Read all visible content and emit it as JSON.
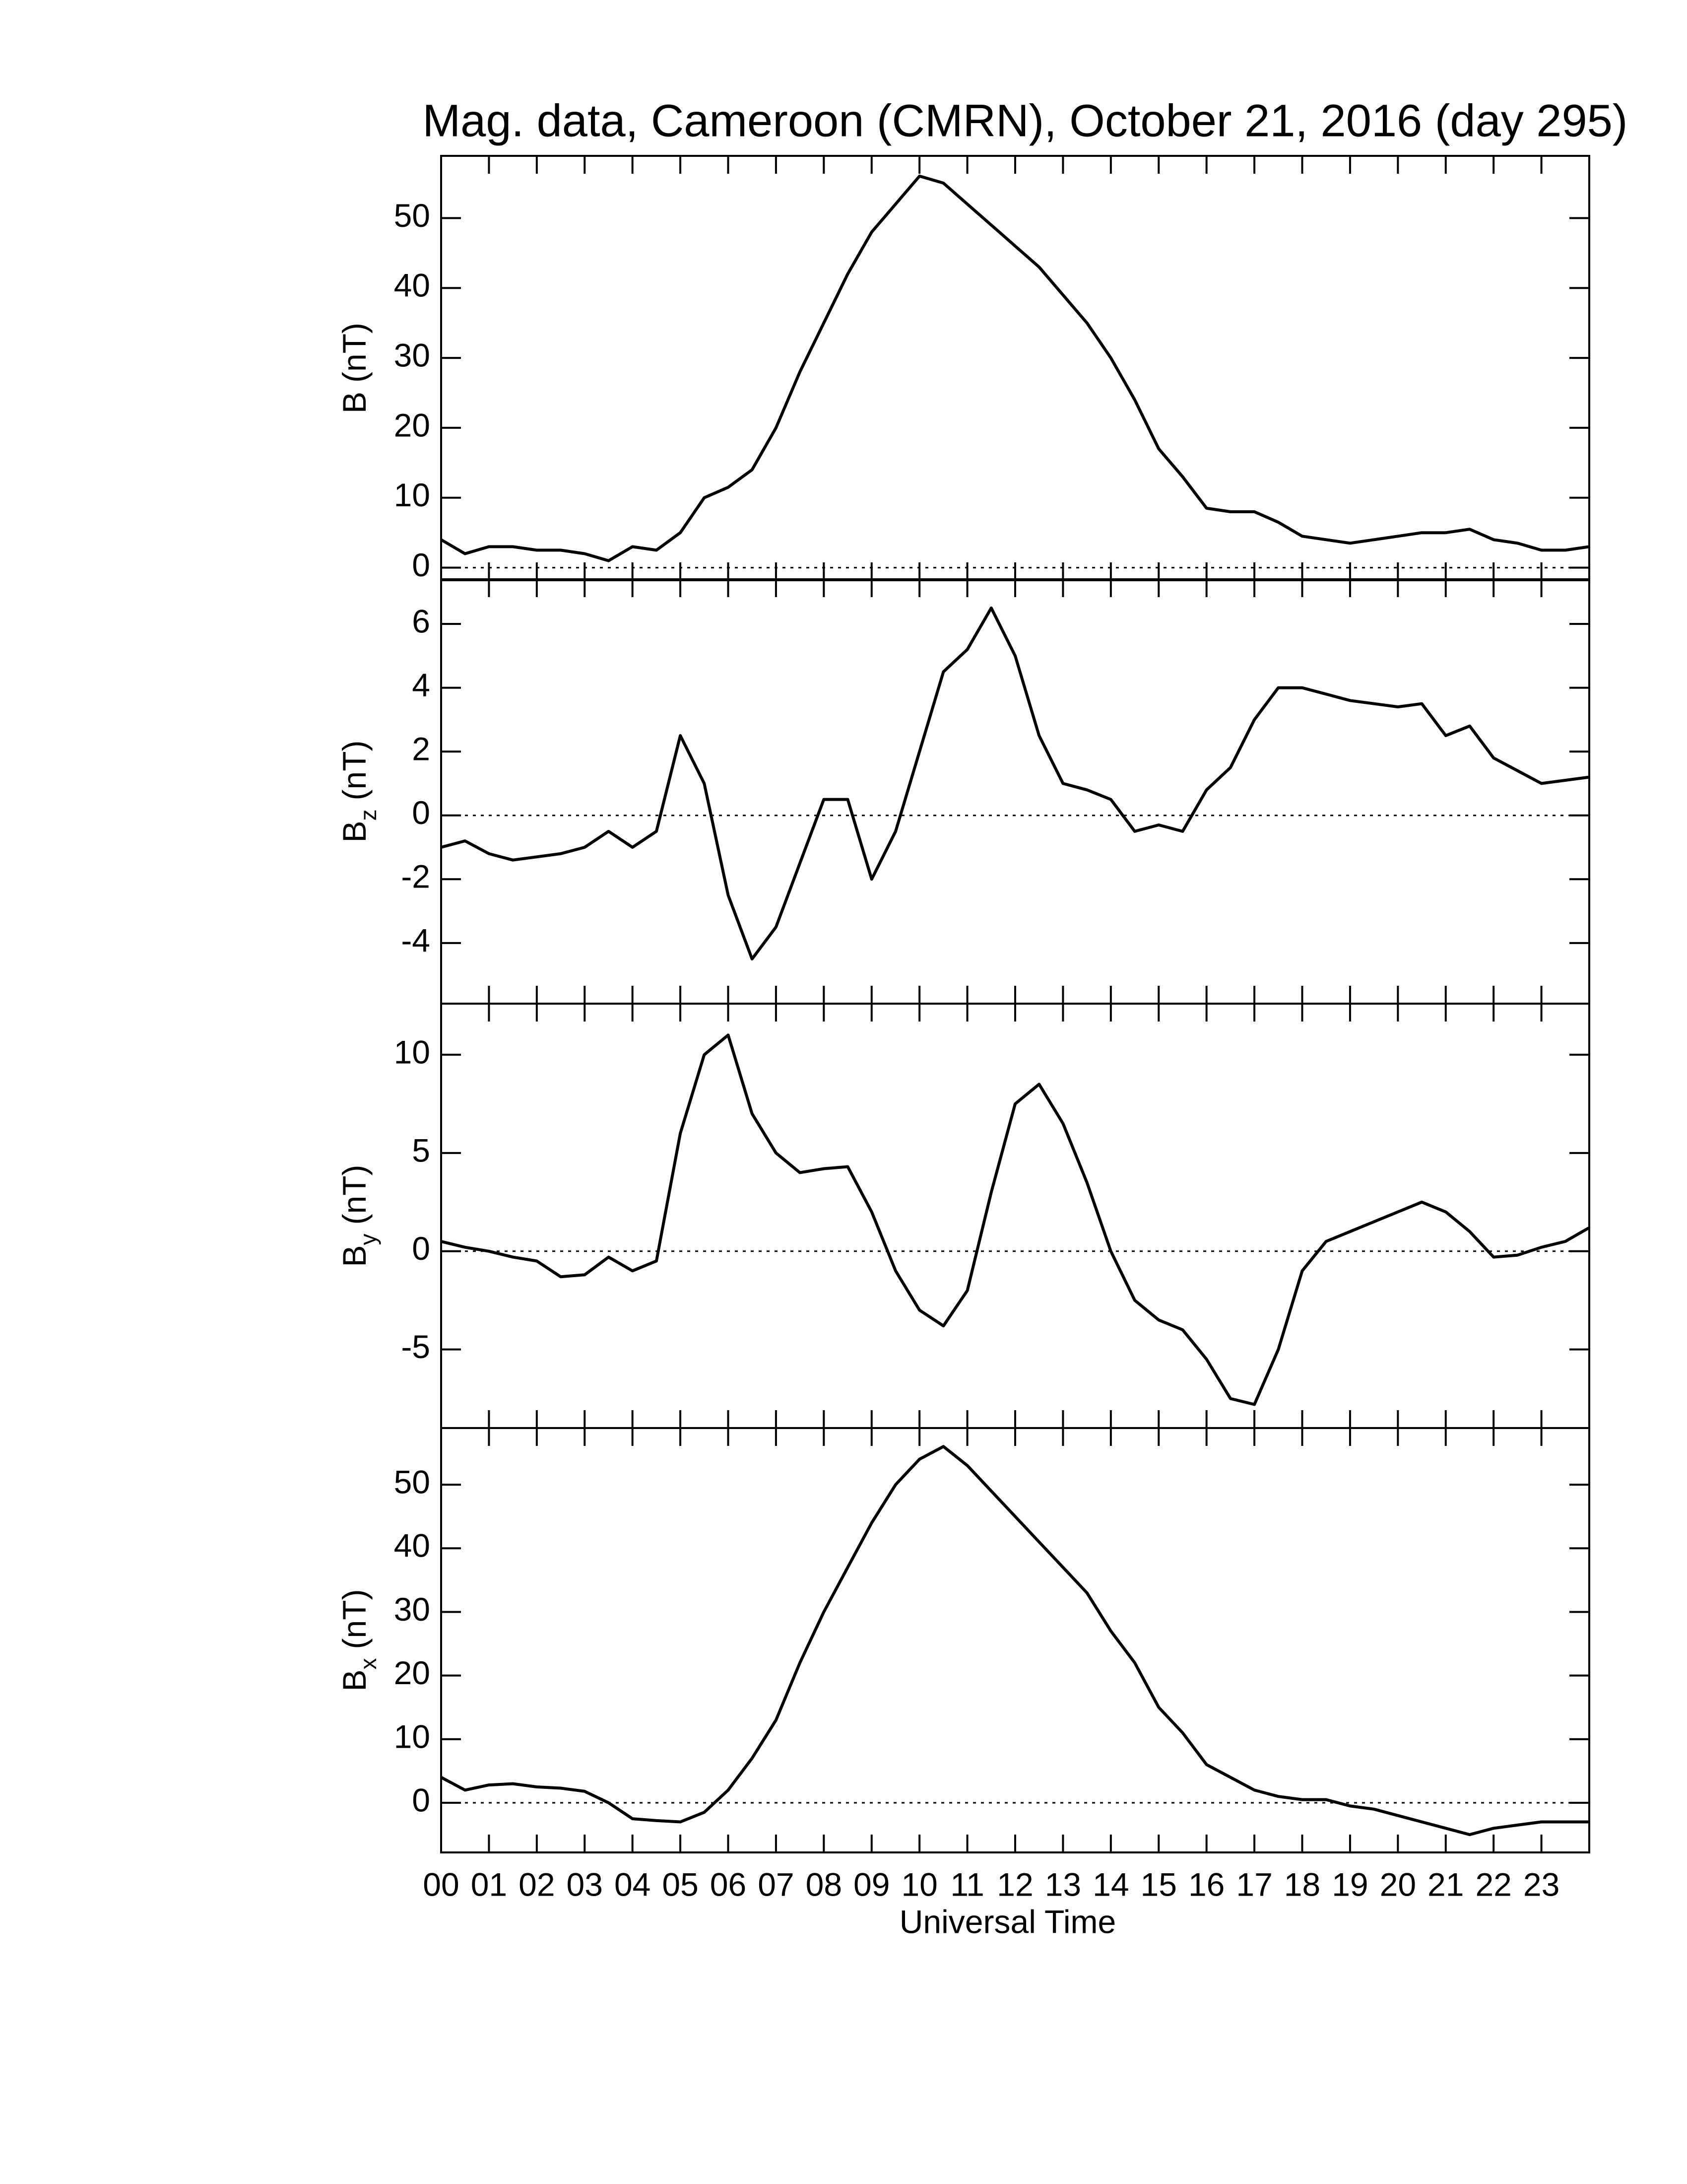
{
  "chart_data": [
    {
      "type": "line",
      "title": "Mag. data, Cameroon (CMRN), October 21, 2016 (day 295)",
      "ylabel": {
        "text": "B",
        "unit": "(nT)"
      },
      "color": "#000000",
      "hline": 0,
      "x": [
        0,
        0.5,
        1,
        1.5,
        2,
        2.5,
        3,
        3.5,
        4,
        4.5,
        5,
        5.5,
        6,
        6.5,
        7,
        7.5,
        8,
        8.5,
        9,
        9.5,
        10,
        10.5,
        11,
        11.5,
        12,
        12.5,
        13,
        13.5,
        14,
        14.5,
        15,
        15.5,
        16,
        16.5,
        17,
        17.5,
        18,
        18.5,
        19,
        19.5,
        20,
        20.5,
        21,
        21.5,
        22,
        22.5,
        23,
        23.5,
        24
      ],
      "values": [
        4,
        2,
        3,
        3,
        2.5,
        2.5,
        2,
        1,
        3,
        2.5,
        5,
        10,
        11.5,
        14,
        20,
        28,
        35,
        42,
        48,
        52,
        56,
        55,
        52,
        49,
        46,
        43,
        39,
        35,
        30,
        24,
        17,
        13,
        8.5,
        8,
        8,
        6.5,
        4.5,
        4,
        3.5,
        4,
        4.5,
        5,
        5,
        5.5,
        4,
        3.5,
        2.5,
        2.5,
        3
      ],
      "xlim": [
        0,
        24
      ],
      "xticks": [
        0,
        1,
        2,
        3,
        4,
        5,
        6,
        7,
        8,
        9,
        10,
        11,
        12,
        13,
        14,
        15,
        16,
        17,
        18,
        19,
        20,
        21,
        22,
        23
      ],
      "ylim": [
        -1.8,
        58.9
      ],
      "yticks": [
        0,
        10,
        20,
        30,
        40,
        50
      ]
    },
    {
      "type": "line",
      "ylabel": {
        "text": "B",
        "sub": "z",
        "unit": "(nT)"
      },
      "color": "#000000",
      "hline": 0,
      "x": [
        0,
        0.5,
        1,
        1.5,
        2,
        2.5,
        3,
        3.5,
        4,
        4.5,
        5,
        5.5,
        6,
        6.5,
        7,
        7.5,
        8,
        8.5,
        9,
        9.5,
        10,
        10.5,
        11,
        11.5,
        12,
        12.5,
        13,
        13.5,
        14,
        14.5,
        15,
        15.5,
        16,
        16.5,
        17,
        17.5,
        18,
        18.5,
        19,
        19.5,
        20,
        20.5,
        21,
        21.5,
        22,
        22.5,
        23,
        23.5,
        24
      ],
      "values": [
        -1,
        -0.8,
        -1.2,
        -1.4,
        -1.3,
        -1.2,
        -1,
        -0.5,
        -1,
        -0.5,
        2.5,
        1,
        -2.5,
        -4.5,
        -3.5,
        -1.5,
        0.5,
        0.5,
        -2,
        -0.5,
        2,
        4.5,
        5.2,
        6.5,
        5,
        2.5,
        1,
        0.8,
        0.5,
        -0.5,
        -0.3,
        -0.5,
        0.8,
        1.5,
        3,
        4,
        4,
        3.8,
        3.6,
        3.5,
        3.4,
        3.5,
        2.5,
        2.8,
        1.8,
        1.4,
        1,
        1.1,
        1.2
      ],
      "xlim": [
        0,
        24
      ],
      "xticks": [
        0,
        1,
        2,
        3,
        4,
        5,
        6,
        7,
        8,
        9,
        10,
        11,
        12,
        13,
        14,
        15,
        16,
        17,
        18,
        19,
        20,
        21,
        22,
        23
      ],
      "ylim": [
        -5.9,
        7.4
      ],
      "yticks": [
        -4,
        -2,
        0,
        2,
        4,
        6
      ]
    },
    {
      "type": "line",
      "ylabel": {
        "text": "B",
        "sub": "y",
        "unit": "(nT)"
      },
      "color": "#000000",
      "hline": 0,
      "x": [
        0,
        0.5,
        1,
        1.5,
        2,
        2.5,
        3,
        3.5,
        4,
        4.5,
        5,
        5.5,
        6,
        6.5,
        7,
        7.5,
        8,
        8.5,
        9,
        9.5,
        10,
        10.5,
        11,
        11.5,
        12,
        12.5,
        13,
        13.5,
        14,
        14.5,
        15,
        15.5,
        16,
        16.5,
        17,
        17.5,
        18,
        18.5,
        19,
        19.5,
        20,
        20.5,
        21,
        21.5,
        22,
        22.5,
        23,
        23.5,
        24
      ],
      "values": [
        0.5,
        0.2,
        0,
        -0.3,
        -0.5,
        -1.3,
        -1.2,
        -0.3,
        -1,
        -0.5,
        6,
        10,
        11,
        7,
        5,
        4,
        4.2,
        4.3,
        2,
        -1,
        -3,
        -3.8,
        -2,
        3,
        7.5,
        8.5,
        6.5,
        3.5,
        0,
        -2.5,
        -3.5,
        -4,
        -5.5,
        -7.5,
        -7.8,
        -5,
        -1,
        0.5,
        1,
        1.5,
        2,
        2.5,
        2,
        1,
        -0.3,
        -0.2,
        0.2,
        0.5,
        1.2
      ],
      "xlim": [
        0,
        24
      ],
      "xticks": [
        0,
        1,
        2,
        3,
        4,
        5,
        6,
        7,
        8,
        9,
        10,
        11,
        12,
        13,
        14,
        15,
        16,
        17,
        18,
        19,
        20,
        21,
        22,
        23
      ],
      "ylim": [
        -9.0,
        12.6
      ],
      "yticks": [
        -5,
        0,
        5,
        10
      ]
    },
    {
      "type": "line",
      "ylabel": {
        "text": "B",
        "sub": "x",
        "unit": "(nT)"
      },
      "color": "#000000",
      "hline": 0,
      "x": [
        0,
        0.5,
        1,
        1.5,
        2,
        2.5,
        3,
        3.5,
        4,
        4.5,
        5,
        5.5,
        6,
        6.5,
        7,
        7.5,
        8,
        8.5,
        9,
        9.5,
        10,
        10.5,
        11,
        11.5,
        12,
        12.5,
        13,
        13.5,
        14,
        14.5,
        15,
        15.5,
        16,
        16.5,
        17,
        17.5,
        18,
        18.5,
        19,
        19.5,
        20,
        20.5,
        21,
        21.5,
        22,
        22.5,
        23,
        23.5,
        24
      ],
      "values": [
        4,
        2,
        2.8,
        3,
        2.5,
        2.3,
        1.8,
        0,
        -2.5,
        -2.8,
        -3,
        -1.5,
        2,
        7,
        13,
        22,
        30,
        37,
        44,
        50,
        54,
        56,
        53,
        49,
        45,
        41,
        37,
        33,
        27,
        22,
        15,
        11,
        6,
        4,
        2,
        1,
        0.5,
        0.5,
        -0.5,
        -1,
        -2,
        -3,
        -4,
        -5,
        -4,
        -3.5,
        -3,
        -3,
        -3
      ],
      "xlim": [
        0,
        24
      ],
      "xlabel": "Universal Time",
      "xticks": [
        {
          "value": 0,
          "label": "00"
        },
        {
          "value": 1,
          "label": "01"
        },
        {
          "value": 2,
          "label": "02"
        },
        {
          "value": 3,
          "label": "03"
        },
        {
          "value": 4,
          "label": "04"
        },
        {
          "value": 5,
          "label": "05"
        },
        {
          "value": 6,
          "label": "06"
        },
        {
          "value": 7,
          "label": "07"
        },
        {
          "value": 8,
          "label": "08"
        },
        {
          "value": 9,
          "label": "09"
        },
        {
          "value": 10,
          "label": "10"
        },
        {
          "value": 11,
          "label": "11"
        },
        {
          "value": 12,
          "label": "12"
        },
        {
          "value": 13,
          "label": "13"
        },
        {
          "value": 14,
          "label": "14"
        },
        {
          "value": 15,
          "label": "15"
        },
        {
          "value": 16,
          "label": "16"
        },
        {
          "value": 17,
          "label": "17"
        },
        {
          "value": 18,
          "label": "18"
        },
        {
          "value": 19,
          "label": "19"
        },
        {
          "value": 20,
          "label": "20"
        },
        {
          "value": 21,
          "label": "21"
        },
        {
          "value": 22,
          "label": "22"
        },
        {
          "value": 23,
          "label": "23"
        }
      ],
      "ylim": [
        -7.8,
        58.9
      ],
      "yticks": [
        0,
        10,
        20,
        30,
        40,
        50
      ]
    }
  ]
}
